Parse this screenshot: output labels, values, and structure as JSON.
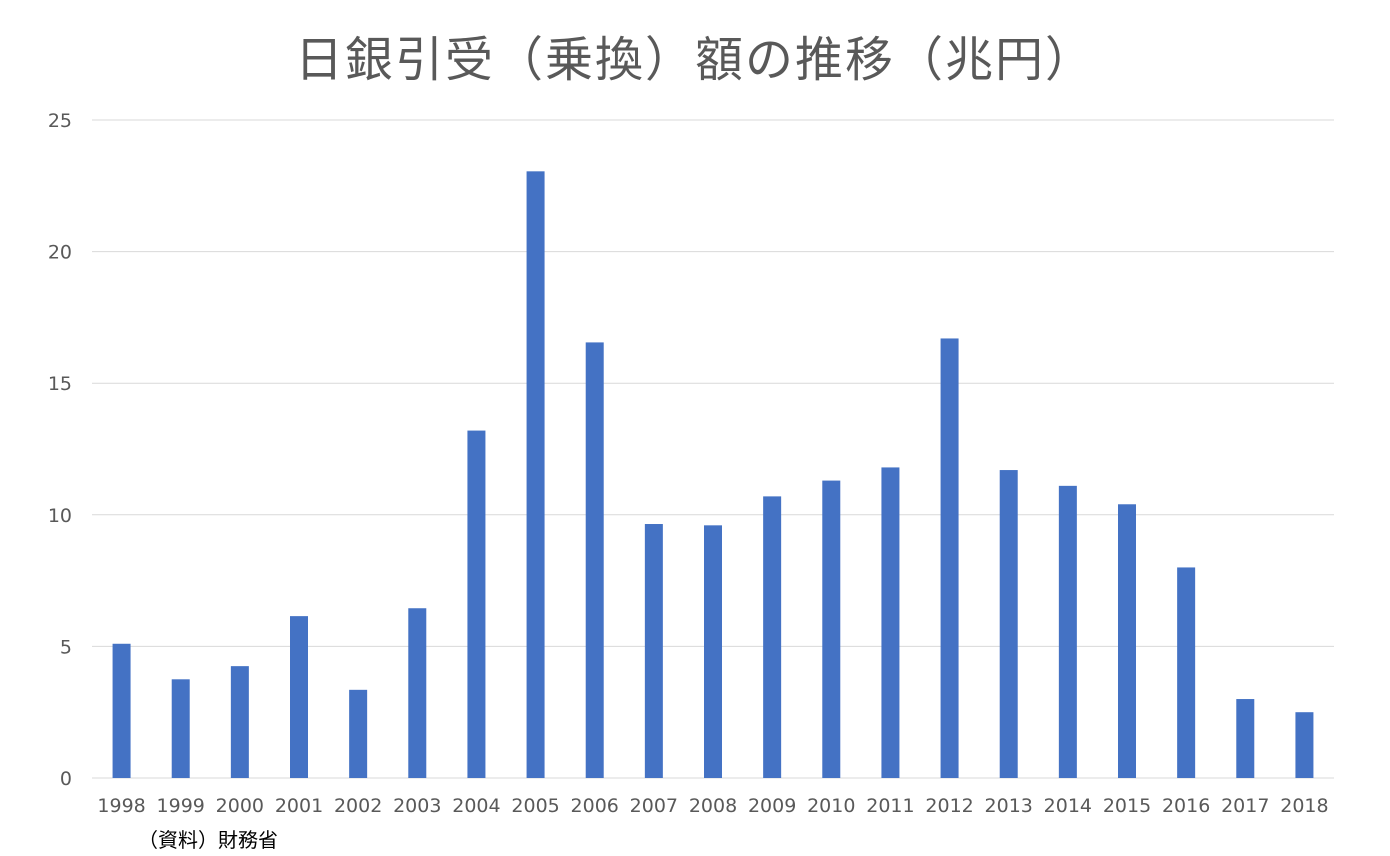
{
  "chart_data": {
    "type": "bar",
    "title": "日銀引受（乗換）額の推移（兆円）",
    "categories": [
      "1998",
      "1999",
      "2000",
      "2001",
      "2002",
      "2003",
      "2004",
      "2005",
      "2006",
      "2007",
      "2008",
      "2009",
      "2010",
      "2011",
      "2012",
      "2013",
      "2014",
      "2015",
      "2016",
      "2017",
      "2018"
    ],
    "values": [
      5.1,
      3.75,
      4.25,
      6.15,
      3.35,
      6.45,
      13.2,
      23.05,
      16.55,
      9.65,
      9.6,
      10.7,
      11.3,
      11.8,
      16.7,
      11.7,
      11.1,
      10.4,
      8.0,
      3.0,
      2.5
    ],
    "ylim": [
      0,
      25
    ],
    "yticks": [
      0,
      5,
      10,
      15,
      20,
      25
    ],
    "xlabel": "",
    "ylabel": "",
    "grid": true,
    "legend": "none",
    "bar_color": "#4472C4",
    "grid_color": "#D9D9D9",
    "source_note": "（資料）財務省"
  }
}
